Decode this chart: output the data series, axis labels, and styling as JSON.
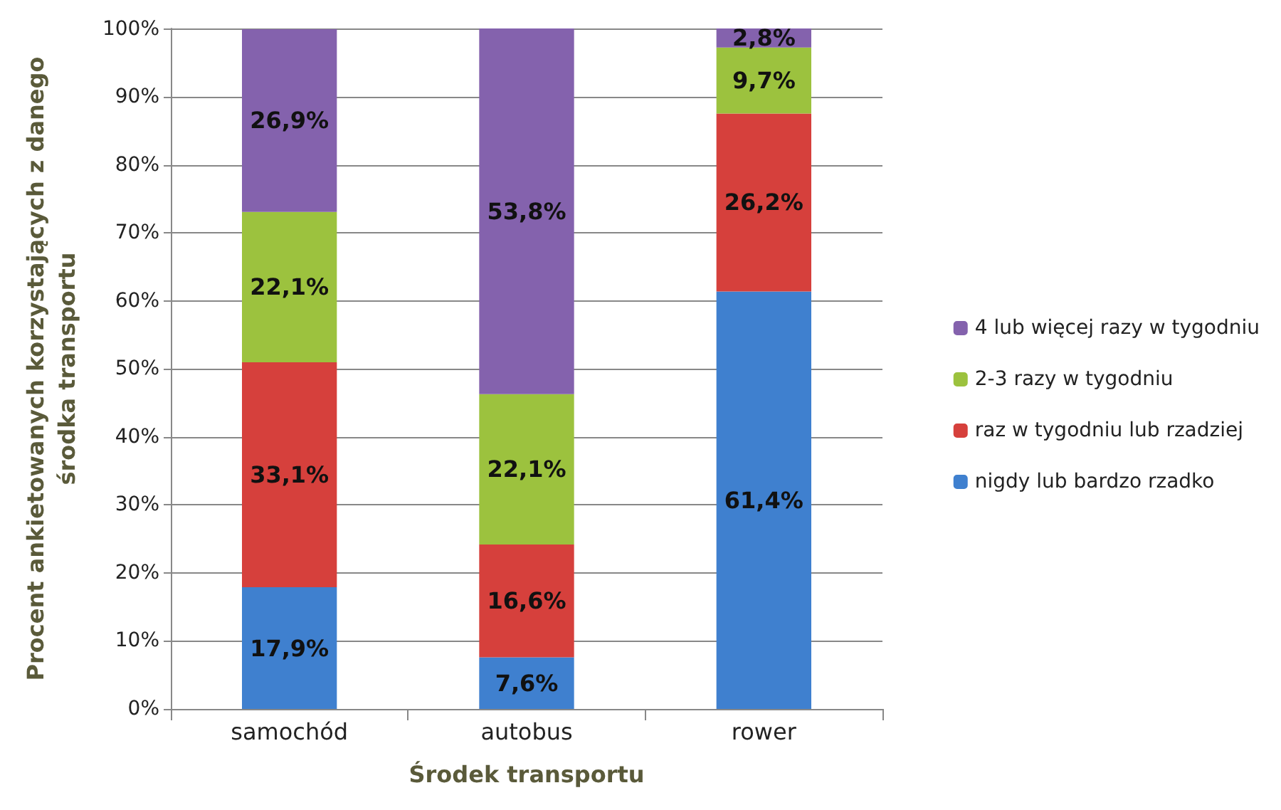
{
  "chart_data": {
    "type": "bar",
    "stacked": true,
    "xlabel": "Środek transportu",
    "ylabel": "Procent ankietowanych korzystających z danego\nśrodka transportu",
    "categories": [
      "samochód",
      "autobus",
      "rower"
    ],
    "series": [
      {
        "name": "nigdy lub bardzo rzadko",
        "color": "#3f80cf",
        "values": [
          17.9,
          7.6,
          61.4
        ],
        "value_labels": [
          "17,9%",
          "7,6%",
          "61,4%"
        ]
      },
      {
        "name": "raz w tygodniu lub rzadziej",
        "color": "#d6403c",
        "values": [
          33.1,
          16.6,
          26.2
        ],
        "value_labels": [
          "33,1%",
          "16,6%",
          "26,2%"
        ]
      },
      {
        "name": "2-3 razy w tygodniu",
        "color": "#9cc23e",
        "values": [
          22.1,
          22.1,
          9.7
        ],
        "value_labels": [
          "22,1%",
          "22,1%",
          "9,7%"
        ]
      },
      {
        "name": "4 lub więcej razy w tygodniu",
        "color": "#8462ad",
        "values": [
          26.9,
          53.8,
          2.8
        ],
        "value_labels": [
          "26,9%",
          "53,8%",
          "2,8%"
        ]
      }
    ],
    "ylim": [
      0,
      100.1
    ],
    "yticks": [
      {
        "value": 0,
        "label": "0%"
      },
      {
        "value": 10,
        "label": "10%"
      },
      {
        "value": 20,
        "label": "20%"
      },
      {
        "value": 30,
        "label": "30%"
      },
      {
        "value": 40,
        "label": "40%"
      },
      {
        "value": 50,
        "label": "50%"
      },
      {
        "value": 60,
        "label": "60%"
      },
      {
        "value": 70,
        "label": "70%"
      },
      {
        "value": 80,
        "label": "80%"
      },
      {
        "value": 90,
        "label": "90%"
      },
      {
        "value": 100,
        "label": "100%"
      }
    ],
    "grid": "y",
    "legend": "right"
  }
}
